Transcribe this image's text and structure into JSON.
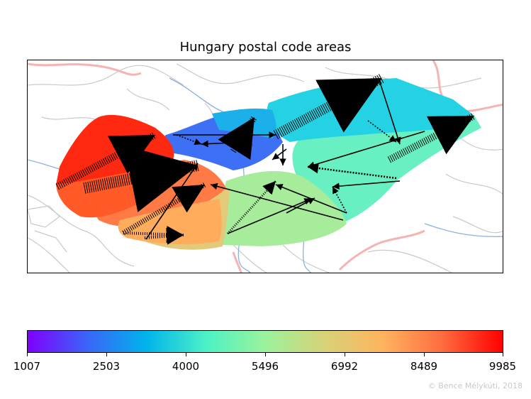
{
  "title": "Hungary postal code areas",
  "colorbar": {
    "ticks": [
      "1007",
      "2503",
      "4000",
      "5496",
      "6992",
      "8489",
      "9985"
    ],
    "min": 1007,
    "max": 9985,
    "colormap": [
      "#7f00ff",
      "#3b64f8",
      "#00b4eb",
      "#4cf1c6",
      "#9bf29c",
      "#d8d277",
      "#ffb35e",
      "#ff6a3e",
      "#ff0000"
    ]
  },
  "credit": "© Bence Mélykúti, 2018",
  "colors": {
    "region_west": "#ff2a10",
    "region_south_west": "#ff8040",
    "region_budapest": "#3f6ff5",
    "region_north_east": "#2ad6e0",
    "region_east": "#62f3c4",
    "region_south": "#b6e48e",
    "borders": "#f6b2b2",
    "roads": "#c7c7c7",
    "rivers": "#86abd9",
    "arrows": "#000000"
  }
}
